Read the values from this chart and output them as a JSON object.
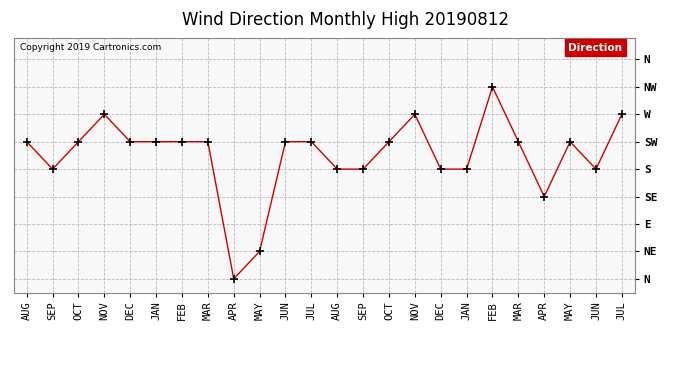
{
  "title": "Wind Direction Monthly High 20190812",
  "copyright": "Copyright 2019 Cartronics.com",
  "legend_label": "Direction",
  "legend_bg": "#cc0000",
  "legend_fg": "#ffffff",
  "months": [
    "AUG",
    "SEP",
    "OCT",
    "NOV",
    "DEC",
    "JAN",
    "FEB",
    "MAR",
    "APR",
    "MAY",
    "JUN",
    "JUL",
    "AUG",
    "SEP",
    "OCT",
    "NOV",
    "DEC",
    "JAN",
    "FEB",
    "MAR",
    "APR",
    "MAY",
    "JUN",
    "JUL"
  ],
  "direction_labels": [
    "N",
    "NW",
    "W",
    "SW",
    "S",
    "SE",
    "E",
    "NE",
    "N"
  ],
  "direction_values": [
    8,
    7,
    6,
    5,
    4,
    3,
    2,
    1,
    0
  ],
  "data_values": [
    5,
    4,
    5,
    6,
    5,
    5,
    5,
    5,
    0,
    1,
    5,
    5,
    4,
    4,
    5,
    6,
    4,
    4,
    7,
    5,
    3,
    5,
    4,
    6
  ],
  "line_color": "#cc0000",
  "marker": "+",
  "marker_size": 6,
  "marker_color": "#000000",
  "bg_color": "#ffffff",
  "plot_bg_color": "#f8f8f8",
  "grid_color": "#bbbbbb",
  "title_fontsize": 12,
  "copyright_fontsize": 6.5,
  "tick_fontsize": 7.5,
  "ylabel_fontsize": 8
}
